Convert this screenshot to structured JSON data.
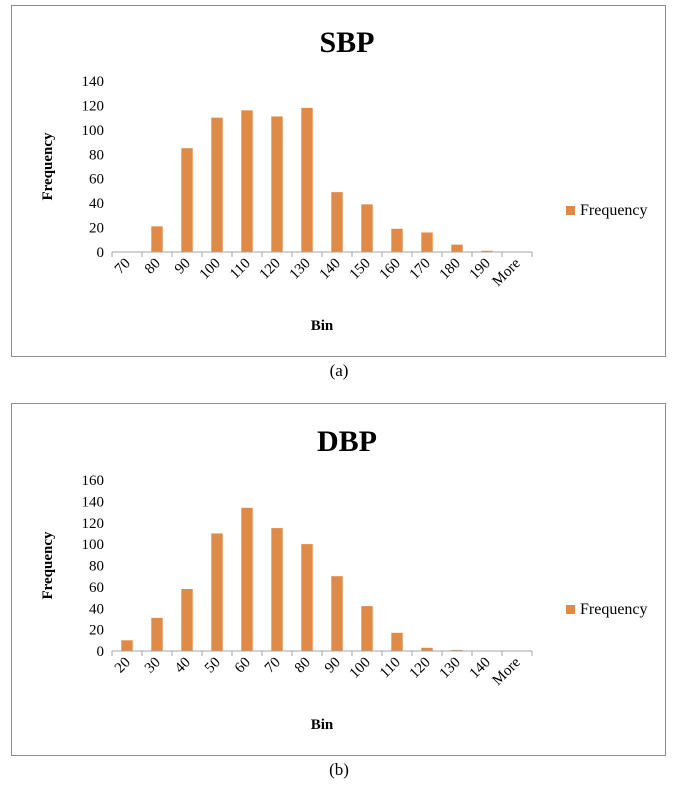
{
  "chart_data": [
    {
      "type": "bar",
      "title": "SBP",
      "xlabel": "Bin",
      "ylabel": "Frequency",
      "categories": [
        "70",
        "80",
        "90",
        "100",
        "110",
        "120",
        "130",
        "140",
        "150",
        "160",
        "170",
        "180",
        "190",
        "More"
      ],
      "series": [
        {
          "name": "Frequency",
          "values": [
            0,
            21,
            85,
            110,
            116,
            111,
            118,
            49,
            39,
            19,
            16,
            6,
            1,
            0
          ]
        }
      ],
      "ylim": [
        0,
        140
      ],
      "yticks": [
        0,
        20,
        40,
        60,
        80,
        100,
        120,
        140
      ],
      "legend": "right",
      "grid": false,
      "bar_color": "#E08A48",
      "caption": "(a)"
    },
    {
      "type": "bar",
      "title": "DBP",
      "xlabel": "Bin",
      "ylabel": "Frequency",
      "categories": [
        "20",
        "30",
        "40",
        "50",
        "60",
        "70",
        "80",
        "90",
        "100",
        "110",
        "120",
        "130",
        "140",
        "More"
      ],
      "series": [
        {
          "name": "Frequency",
          "values": [
            10,
            31,
            58,
            110,
            134,
            115,
            100,
            70,
            42,
            17,
            3,
            1,
            0,
            0
          ]
        }
      ],
      "ylim": [
        0,
        160
      ],
      "yticks": [
        0,
        20,
        40,
        60,
        80,
        100,
        120,
        140,
        160
      ],
      "legend": "right",
      "grid": false,
      "bar_color": "#E08A48",
      "caption": "(b)"
    }
  ]
}
